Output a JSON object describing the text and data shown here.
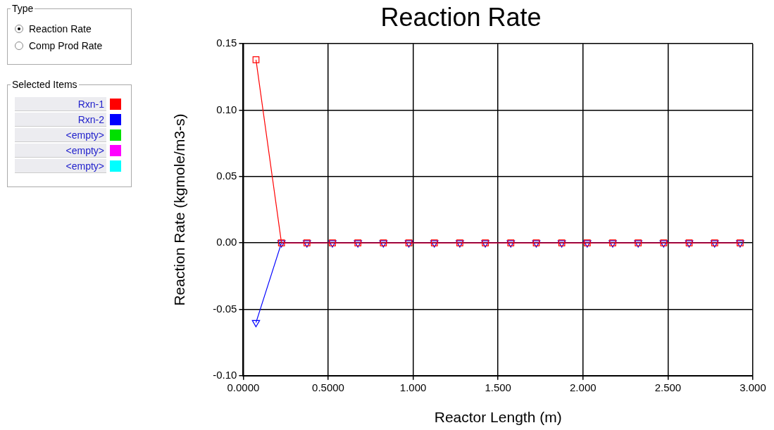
{
  "chart_data": {
    "type": "line",
    "title": "Reaction Rate",
    "xlabel": "Reactor Length (m)",
    "ylabel": "Reaction Rate (kgmole/m3-s)",
    "legend_title": "Selected Items",
    "legend": "left",
    "grid": true,
    "line_style": "solid",
    "x": [
      0.075,
      0.225,
      0.375,
      0.525,
      0.675,
      0.825,
      0.975,
      1.125,
      1.275,
      1.425,
      1.575,
      1.725,
      1.875,
      2.025,
      2.175,
      2.325,
      2.475,
      2.625,
      2.775,
      2.925
    ],
    "xlim": [
      0,
      3
    ],
    "xticks": [
      {
        "value": 0,
        "label": "0.0000"
      },
      {
        "value": 0.5,
        "label": "0.5000"
      },
      {
        "value": 1,
        "label": "1.000"
      },
      {
        "value": 1.5,
        "label": "1.500"
      },
      {
        "value": 2,
        "label": "2.000"
      },
      {
        "value": 2.5,
        "label": "2.500"
      },
      {
        "value": 3,
        "label": "3.000"
      }
    ],
    "ylim": [
      -0.1,
      0.15
    ],
    "yticks": [
      {
        "value": -0.1,
        "label": "-0.10"
      },
      {
        "value": -0.05,
        "label": "-0.05"
      },
      {
        "value": 0,
        "label": "0.00"
      },
      {
        "value": 0.05,
        "label": "0.05"
      },
      {
        "value": 0.1,
        "label": "0.10"
      },
      {
        "value": 0.15,
        "label": "0.15"
      }
    ],
    "series": [
      {
        "name": "Rxn-1",
        "color": "#ff0000",
        "marker": "square",
        "values": [
          0.138,
          0,
          0,
          0,
          0,
          0,
          0,
          0,
          0,
          0,
          0,
          0,
          0,
          0,
          0,
          0,
          0,
          0,
          0,
          0
        ]
      },
      {
        "name": "Rxn-2",
        "color": "#0000ff",
        "marker": "triangle",
        "values": [
          -0.06,
          0,
          0,
          0,
          0,
          0,
          0,
          0,
          0,
          0,
          0,
          0,
          0,
          0,
          0,
          0,
          0,
          0,
          0,
          0
        ]
      }
    ],
    "annotations": [
      "Type",
      "Reaction Rate",
      "Comp Prod Rate",
      "<empty>",
      "<empty>",
      "<empty>"
    ]
  }
}
